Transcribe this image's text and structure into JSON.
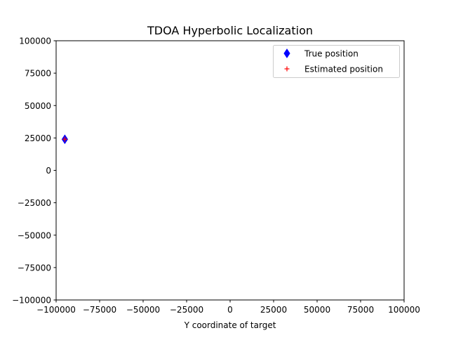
{
  "chart_data": {
    "type": "scatter",
    "title": "TDOA Hyperbolic Localization",
    "xlabel": "Y coordinate of target",
    "ylabel": "",
    "xlim": [
      -100000,
      100000
    ],
    "ylim": [
      -100000,
      100000
    ],
    "x_ticks": [
      -100000,
      -75000,
      -50000,
      -25000,
      0,
      25000,
      50000,
      75000,
      100000
    ],
    "y_ticks": [
      -100000,
      -75000,
      -50000,
      -25000,
      0,
      25000,
      50000,
      75000,
      100000
    ],
    "x_tick_labels": [
      "−100000",
      "−75000",
      "−50000",
      "−25000",
      "0",
      "25000",
      "50000",
      "75000",
      "100000"
    ],
    "y_tick_labels": [
      "−100000",
      "−75000",
      "−50000",
      "−25000",
      "0",
      "25000",
      "50000",
      "75000",
      "100000"
    ],
    "grid": false,
    "legend_position": "top-right",
    "series": [
      {
        "name": "True position",
        "marker": "diamond",
        "color": "#0000ff",
        "points": [
          {
            "x": -95000,
            "y": 24000
          }
        ]
      },
      {
        "name": "Estimated position",
        "marker": "plus",
        "color": "#ff0000",
        "points": [
          {
            "x": -95000,
            "y": 24000
          }
        ]
      }
    ]
  }
}
